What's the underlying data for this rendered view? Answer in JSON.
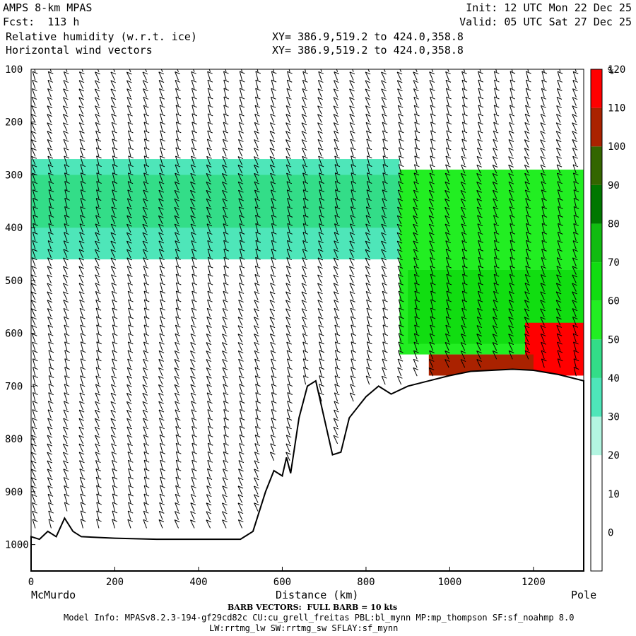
{
  "header": {
    "model": "AMPS 8-km MPAS",
    "fcst": "Fcst:  113 h",
    "field1": "Relative humidity (w.r.t. ice)",
    "field2": "Horizontal wind vectors",
    "init": "Init: 12 UTC Mon 22 Dec 25",
    "valid": "Valid: 05 UTC Sat 27 Dec 25",
    "xy1": "XY= 386.9,519.2 to 424.0,358.8",
    "xy2": "XY= 386.9,519.2 to 424.0,358.8"
  },
  "footer": {
    "left_label": "McMurdo",
    "right_label": "Pole",
    "barb_note": "BARB VECTORS:  FULL BARB = 10 kts",
    "model_info": "Model Info: MPASv8.2.3-194-gf29cd82c CU:cu_grell_freitas PBL:bl_mynn MP:mp_thompson SF:sf_noahmp 8.0",
    "model_info2": "LW:rrtmg_lw SW:rrtmg_sw SFLAY:sf_mynn"
  },
  "colors": {
    "band_30_40": "#b3f5e1",
    "band_40_50": "#4ee6b9",
    "band_50_60": "#33dd88",
    "band_60_70": "#22ee22",
    "band_70_80": "#11dd11",
    "band_80_90": "#11bb11",
    "band_90_100": "#007700",
    "band_100_110": "#336600",
    "band_110_120": "#aa2200",
    "band_120_plus": "#ff0000",
    "terrain": "#ffffff"
  },
  "chart_data": {
    "type": "heatmap",
    "title": "Relative humidity (w.r.t. ice)",
    "xlabel": "Distance (km)",
    "ylabel": "",
    "xlim": [
      0,
      1320
    ],
    "ylim": [
      1050,
      100
    ],
    "x_ticks": [
      0,
      200,
      400,
      600,
      800,
      1000,
      1200
    ],
    "y_ticks": [
      100,
      200,
      300,
      400,
      500,
      600,
      700,
      800,
      900,
      1000
    ],
    "colorbar": {
      "unit": "%",
      "levels": [
        0,
        10,
        20,
        30,
        40,
        50,
        60,
        70,
        80,
        90,
        100,
        110,
        120
      ],
      "colors": [
        "#ffffff",
        "#ffffff",
        "#ffffff",
        "#b3f5e1",
        "#4ee6b9",
        "#33dd88",
        "#22ee22",
        "#11dd11",
        "#11bb11",
        "#007700",
        "#336600",
        "#aa2200",
        "#ff0000"
      ]
    },
    "terrain_surface_hpa": [
      [
        0,
        985
      ],
      [
        20,
        990
      ],
      [
        40,
        975
      ],
      [
        60,
        985
      ],
      [
        80,
        950
      ],
      [
        100,
        975
      ],
      [
        120,
        985
      ],
      [
        200,
        988
      ],
      [
        300,
        990
      ],
      [
        400,
        990
      ],
      [
        500,
        990
      ],
      [
        530,
        975
      ],
      [
        560,
        900
      ],
      [
        580,
        860
      ],
      [
        600,
        870
      ],
      [
        610,
        835
      ],
      [
        620,
        865
      ],
      [
        640,
        760
      ],
      [
        660,
        700
      ],
      [
        680,
        690
      ],
      [
        700,
        760
      ],
      [
        720,
        830
      ],
      [
        740,
        825
      ],
      [
        760,
        760
      ],
      [
        780,
        740
      ],
      [
        800,
        720
      ],
      [
        830,
        700
      ],
      [
        860,
        715
      ],
      [
        900,
        700
      ],
      [
        950,
        690
      ],
      [
        1000,
        680
      ],
      [
        1050,
        672
      ],
      [
        1100,
        670
      ],
      [
        1150,
        668
      ],
      [
        1200,
        670
      ],
      [
        1260,
        678
      ],
      [
        1320,
        690
      ]
    ],
    "rh_regions": [
      {
        "label": "upper moist layer",
        "x": [
          0,
          880
        ],
        "p": [
          270,
          460
        ],
        "rh": 40
      },
      {
        "label": "upper moist core",
        "x": [
          0,
          880
        ],
        "p": [
          300,
          400
        ],
        "rh": 55
      },
      {
        "label": "eastern moist column",
        "x": [
          880,
          1320
        ],
        "p": [
          290,
          640
        ],
        "rh": 60
      },
      {
        "label": "eastern moist core",
        "x": [
          900,
          1320
        ],
        "p": [
          480,
          620
        ],
        "rh": 75
      },
      {
        "label": "near-surface saturation",
        "x": [
          1180,
          1320
        ],
        "p": [
          580,
          680
        ],
        "rh": 120
      },
      {
        "label": "low-level band",
        "x": [
          950,
          1200
        ],
        "p": [
          640,
          680
        ],
        "rh": 110
      }
    ]
  }
}
